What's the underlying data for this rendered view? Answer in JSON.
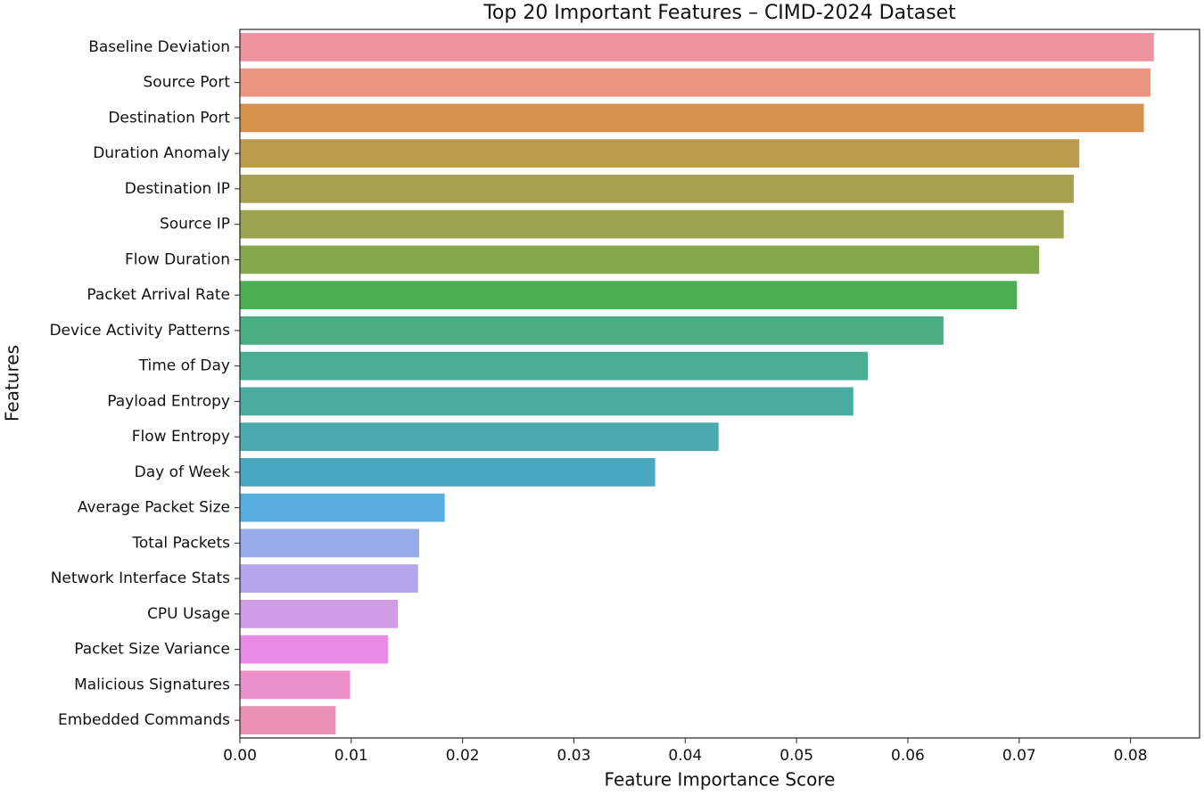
{
  "chart_data": {
    "type": "barh",
    "title": "Top 20 Important Features – CIMD-2024 Dataset",
    "x_label": "Feature Importance Score",
    "y_label": "Features",
    "categories": [
      "Baseline Deviation",
      "Source Port",
      "Destination Port",
      "Duration Anomaly",
      "Destination IP",
      "Source IP",
      "Flow Duration",
      "Packet Arrival Rate",
      "Device Activity Patterns",
      "Time of Day",
      "Payload Entropy",
      "Flow Entropy",
      "Day of Week",
      "Average Packet Size",
      "Total Packets",
      "Network Interface Stats",
      "CPU Usage",
      "Packet Size Variance",
      "Malicious Signatures",
      "Embedded Commands"
    ],
    "values": [
      0.0821,
      0.0818,
      0.0812,
      0.0754,
      0.0749,
      0.074,
      0.0718,
      0.0698,
      0.0632,
      0.0564,
      0.0551,
      0.043,
      0.0373,
      0.0184,
      0.0161,
      0.016,
      0.0142,
      0.0133,
      0.0099,
      0.0086
    ],
    "colors": [
      "#ec94a0",
      "#e9957f",
      "#d8914d",
      "#bb9c4d",
      "#aaa14f",
      "#9da44f",
      "#85a84a",
      "#4ab04f",
      "#4bae82",
      "#4aae94",
      "#4aab9f",
      "#4aaab0",
      "#4aa9c0",
      "#58addf",
      "#95abe8",
      "#b3a4ec",
      "#d29be8",
      "#ea8ae6",
      "#ea8fc8",
      "#ea90b3"
    ],
    "xlim": [
      0,
      0.0862
    ],
    "xticks": [
      {
        "value": 0,
        "label": "0.00"
      },
      0.01,
      0.02,
      0.03,
      0.04,
      0.05,
      0.06,
      0.07,
      0.08
    ]
  }
}
